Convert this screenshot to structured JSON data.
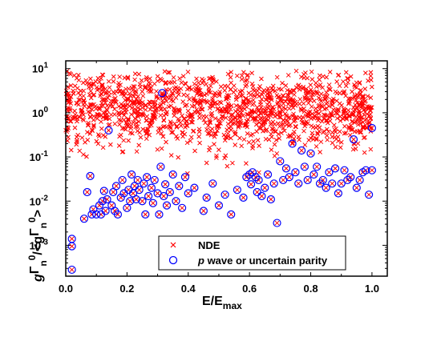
{
  "colors": {
    "nde": "#ff0000",
    "pwave": "#0000ff",
    "axis": "#000000"
  },
  "chart_data": {
    "type": "scatter",
    "title": "",
    "xlabel": {
      "main": "E/E",
      "sub": "max"
    },
    "ylabel": {
      "p1": "g",
      "p2": "Γ",
      "p3": "n",
      "p4": "0",
      "p5": "/<g",
      "p6": "Γ",
      "p7": "n",
      "p8": "0",
      "p9": ">"
    },
    "xlim": [
      0,
      1.05
    ],
    "ylim": [
      0.0002,
      15
    ],
    "yscale": "log",
    "grid": false,
    "legend_position": "bottom-center",
    "x_ticks": [
      "0.0",
      "0.2",
      "0.4",
      "0.6",
      "0.8",
      "1.0"
    ],
    "x_tick_values": [
      0,
      0.2,
      0.4,
      0.6,
      0.8,
      1.0
    ],
    "y_ticks": [
      {
        "value": 0.001,
        "base": "10",
        "exp": "-3"
      },
      {
        "value": 0.01,
        "base": "10",
        "exp": "-2"
      },
      {
        "value": 0.1,
        "base": "10",
        "exp": "-1"
      },
      {
        "value": 1,
        "base": "10",
        "exp": "0"
      },
      {
        "value": 10,
        "base": "10",
        "exp": "1"
      }
    ],
    "series": [
      {
        "name": "NDE",
        "marker": "x",
        "generated": true,
        "count": 1400,
        "x_range": [
          0,
          1.0
        ],
        "log10_y_mean": 0.05,
        "log10_y_sd": 0.42,
        "log10_y_min": -1.5,
        "log10_y_max": 0.95,
        "extra_points": [
          [
            0.01,
            0.0028
          ],
          [
            0.02,
            0.00095
          ],
          [
            0.02,
            0.0014
          ],
          [
            0.02,
            0.00028
          ]
        ]
      },
      {
        "name": "p wave or uncertain parity",
        "marker": "o",
        "points": [
          [
            0.02,
            0.00028
          ],
          [
            0.02,
            0.00095
          ],
          [
            0.02,
            0.0014
          ],
          [
            0.06,
            0.004
          ],
          [
            0.07,
            0.016
          ],
          [
            0.08,
            0.037
          ],
          [
            0.085,
            0.005
          ],
          [
            0.09,
            0.0065
          ],
          [
            0.1,
            0.005
          ],
          [
            0.11,
            0.008
          ],
          [
            0.115,
            0.005
          ],
          [
            0.12,
            0.01
          ],
          [
            0.125,
            0.017
          ],
          [
            0.13,
            0.006
          ],
          [
            0.135,
            0.011
          ],
          [
            0.14,
            0.4
          ],
          [
            0.15,
            0.008
          ],
          [
            0.155,
            0.016
          ],
          [
            0.16,
            0.006
          ],
          [
            0.165,
            0.022
          ],
          [
            0.17,
            0.005
          ],
          [
            0.18,
            0.012
          ],
          [
            0.185,
            0.03
          ],
          [
            0.19,
            0.015
          ],
          [
            0.2,
            0.007
          ],
          [
            0.205,
            0.018
          ],
          [
            0.21,
            0.01
          ],
          [
            0.215,
            0.04
          ],
          [
            0.22,
            0.015
          ],
          [
            0.225,
            0.022
          ],
          [
            0.23,
            0.011
          ],
          [
            0.235,
            0.03
          ],
          [
            0.24,
            0.018
          ],
          [
            0.25,
            0.01
          ],
          [
            0.255,
            0.025
          ],
          [
            0.26,
            0.005
          ],
          [
            0.265,
            0.035
          ],
          [
            0.27,
            0.013
          ],
          [
            0.28,
            0.02
          ],
          [
            0.285,
            0.009
          ],
          [
            0.29,
            0.03
          ],
          [
            0.3,
            0.015
          ],
          [
            0.305,
            0.005
          ],
          [
            0.31,
            0.06
          ],
          [
            0.315,
            2.8
          ],
          [
            0.32,
            0.013
          ],
          [
            0.325,
            0.024
          ],
          [
            0.33,
            0.008
          ],
          [
            0.34,
            0.016
          ],
          [
            0.35,
            0.04
          ],
          [
            0.36,
            0.01
          ],
          [
            0.37,
            0.022
          ],
          [
            0.38,
            0.007
          ],
          [
            0.39,
            0.035
          ],
          [
            0.4,
            0.015
          ],
          [
            0.42,
            0.02
          ],
          [
            0.45,
            0.006
          ],
          [
            0.46,
            0.012
          ],
          [
            0.48,
            0.025
          ],
          [
            0.5,
            0.008
          ],
          [
            0.52,
            0.014
          ],
          [
            0.54,
            0.005
          ],
          [
            0.56,
            0.018
          ],
          [
            0.58,
            0.012
          ],
          [
            0.59,
            0.035
          ],
          [
            0.6,
            0.04
          ],
          [
            0.605,
            0.024
          ],
          [
            0.61,
            0.045
          ],
          [
            0.62,
            0.035
          ],
          [
            0.625,
            0.016
          ],
          [
            0.63,
            0.03
          ],
          [
            0.64,
            0.013
          ],
          [
            0.65,
            0.02
          ],
          [
            0.66,
            0.04
          ],
          [
            0.67,
            0.011
          ],
          [
            0.68,
            0.025
          ],
          [
            0.69,
            0.0032
          ],
          [
            0.7,
            0.08
          ],
          [
            0.71,
            0.03
          ],
          [
            0.72,
            0.055
          ],
          [
            0.73,
            0.035
          ],
          [
            0.74,
            0.2
          ],
          [
            0.75,
            0.045
          ],
          [
            0.76,
            0.025
          ],
          [
            0.77,
            0.14
          ],
          [
            0.78,
            0.06
          ],
          [
            0.79,
            0.03
          ],
          [
            0.8,
            0.12
          ],
          [
            0.81,
            0.04
          ],
          [
            0.82,
            0.06
          ],
          [
            0.83,
            0.025
          ],
          [
            0.84,
            0.03
          ],
          [
            0.85,
            0.02
          ],
          [
            0.86,
            0.045
          ],
          [
            0.87,
            0.025
          ],
          [
            0.88,
            0.055
          ],
          [
            0.89,
            0.015
          ],
          [
            0.9,
            0.025
          ],
          [
            0.91,
            0.05
          ],
          [
            0.92,
            0.03
          ],
          [
            0.93,
            0.035
          ],
          [
            0.94,
            0.25
          ],
          [
            0.95,
            0.02
          ],
          [
            0.96,
            0.03
          ],
          [
            0.97,
            0.045
          ],
          [
            0.98,
            0.05
          ],
          [
            0.99,
            0.014
          ],
          [
            1.0,
            0.05
          ],
          [
            1.0,
            0.45
          ]
        ]
      }
    ]
  }
}
